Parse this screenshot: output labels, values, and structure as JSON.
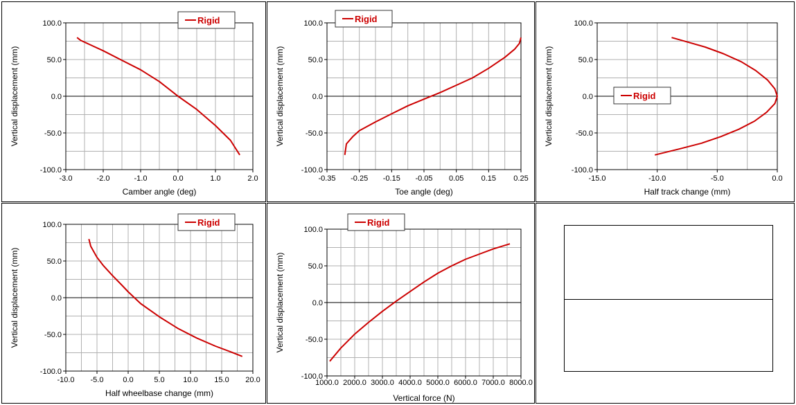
{
  "colors": {
    "series": "#cc0000",
    "grid": "#b0b0b0",
    "axis": "#000000"
  },
  "chart_data": [
    {
      "type": "line",
      "xlabel": "Camber angle (deg)",
      "ylabel": "Vertical displacement (mm)",
      "xlim": [
        -3.0,
        2.0
      ],
      "ylim": [
        -100.0,
        100.0
      ],
      "xticks": [
        "-3.0",
        "-2.0",
        "-1.0",
        "0.0",
        "1.0",
        "2.0"
      ],
      "yticks": [
        "-100.0",
        "-50.0",
        "0.0",
        "50.0",
        "100.0"
      ],
      "grid": true,
      "legend": "top-right",
      "series": [
        {
          "name": "Rigid",
          "x": [
            -2.7,
            -2.6,
            -2.0,
            -1.5,
            -1.0,
            -0.5,
            0.0,
            0.5,
            1.0,
            1.4,
            1.65
          ],
          "y": [
            80,
            76,
            62,
            49,
            36,
            20,
            0,
            -18,
            -40,
            -60,
            -80
          ]
        }
      ]
    },
    {
      "type": "line",
      "xlabel": "Toe angle (deg)",
      "ylabel": "Vertical displacement (mm)",
      "xlim": [
        -0.35,
        0.25
      ],
      "ylim": [
        -100.0,
        100.0
      ],
      "xticks": [
        "-0.35",
        "-0.25",
        "-0.15",
        "-0.05",
        "0.05",
        "0.15",
        "0.25"
      ],
      "yticks": [
        "-100.0",
        "-50.0",
        "0.0",
        "50.0",
        "100.0"
      ],
      "grid": true,
      "legend": "top-left",
      "series": [
        {
          "name": "Rigid",
          "x": [
            -0.295,
            -0.29,
            -0.27,
            -0.25,
            -0.2,
            -0.15,
            -0.1,
            -0.05,
            0.0,
            0.05,
            0.1,
            0.15,
            0.2,
            0.23,
            0.245,
            0.25
          ],
          "y": [
            -80,
            -65,
            -55,
            -47,
            -35,
            -24,
            -13,
            -4,
            5,
            15,
            25,
            38,
            53,
            64,
            72,
            80
          ]
        }
      ]
    },
    {
      "type": "line",
      "xlabel": "Half track change (mm)",
      "ylabel": "Vertical displacement (mm)",
      "xlim": [
        -15.0,
        0.0
      ],
      "ylim": [
        -100.0,
        100.0
      ],
      "xticks": [
        "-15.0",
        "-10.0",
        "-5.0",
        "0.0"
      ],
      "yticks": [
        "-100.0",
        "-50.0",
        "0.0",
        "50.0",
        "100.0"
      ],
      "grid": true,
      "legend": "left",
      "series": [
        {
          "name": "Rigid",
          "x": [
            -8.8,
            -7.5,
            -6.0,
            -4.5,
            -3.0,
            -1.8,
            -0.8,
            -0.2,
            0.0,
            -0.2,
            -0.9,
            -1.9,
            -3.2,
            -4.7,
            -6.3,
            -8.2,
            -10.2
          ],
          "y": [
            80,
            74,
            67,
            58,
            47,
            35,
            22,
            10,
            0,
            -10,
            -22,
            -34,
            -45,
            -55,
            -64,
            -72,
            -80
          ]
        }
      ]
    },
    {
      "type": "line",
      "xlabel": "Half wheelbase change (mm)",
      "ylabel": "Vertical displacement (mm)",
      "xlim": [
        -10.0,
        20.0
      ],
      "ylim": [
        -100.0,
        100.0
      ],
      "xticks": [
        "-10.0",
        "-5.0",
        "0.0",
        "5.0",
        "10.0",
        "15.0",
        "20.0"
      ],
      "yticks": [
        "-100.0",
        "-50.0",
        "0.0",
        "50.0",
        "100.0"
      ],
      "grid": true,
      "legend": "top-right",
      "series": [
        {
          "name": "Rigid",
          "x": [
            -6.3,
            -6.0,
            -5.0,
            -4.0,
            -2.5,
            -1.0,
            0.0,
            2.0,
            5.0,
            8.0,
            11.0,
            14.0,
            16.5,
            18.3
          ],
          "y": [
            80,
            70,
            55,
            44,
            30,
            17,
            8,
            -8,
            -26,
            -42,
            -55,
            -66,
            -74,
            -80
          ]
        }
      ]
    },
    {
      "type": "line",
      "xlabel": "Vertical force (N)",
      "ylabel": "Vertical displacement (mm)",
      "xlim": [
        1000.0,
        8000.0
      ],
      "ylim": [
        -100.0,
        100.0
      ],
      "xticks": [
        "1000.0",
        "2000.0",
        "3000.0",
        "4000.0",
        "5000.0",
        "6000.0",
        "7000.0",
        "8000.0"
      ],
      "yticks": [
        "-100.0",
        "-50.0",
        "0.0",
        "50.0",
        "100.0"
      ],
      "grid": true,
      "legend": "top-left",
      "series": [
        {
          "name": "Rigid",
          "x": [
            1100,
            1500,
            2000,
            2500,
            3000,
            3500,
            4000,
            4500,
            5000,
            5500,
            6000,
            6500,
            7000,
            7600
          ],
          "y": [
            -80,
            -62,
            -43,
            -27,
            -12,
            2,
            15,
            28,
            40,
            50,
            59,
            66,
            73,
            80
          ]
        }
      ]
    }
  ]
}
